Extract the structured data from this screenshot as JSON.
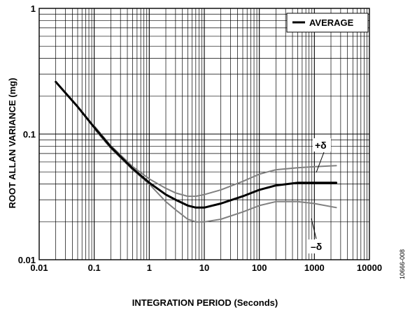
{
  "chart_data": {
    "type": "line",
    "title": "",
    "xlabel": "INTEGRATION PERIOD (Seconds)",
    "ylabel": "ROOT ALLAN VARIANCE (mg)",
    "x_scale": "log",
    "y_scale": "log",
    "xlim": [
      0.01,
      10000
    ],
    "ylim": [
      0.01,
      1
    ],
    "x_ticks": [
      "0.01",
      "0.1",
      "1",
      "10",
      "100",
      "1000",
      "10000"
    ],
    "y_ticks": [
      "0.01",
      "0.1",
      "1"
    ],
    "grid": true,
    "legend": {
      "position": "top-right",
      "entries": [
        "AVERAGE"
      ]
    },
    "series": [
      {
        "name": "AVERAGE",
        "color": "#000000",
        "x": [
          0.02,
          0.05,
          0.1,
          0.2,
          0.5,
          1,
          2,
          3,
          5,
          7,
          10,
          20,
          50,
          100,
          200,
          500,
          1000,
          2500
        ],
        "y": [
          0.26,
          0.165,
          0.113,
          0.079,
          0.053,
          0.041,
          0.033,
          0.03,
          0.027,
          0.026,
          0.026,
          0.028,
          0.032,
          0.036,
          0.039,
          0.041,
          0.041,
          0.041
        ]
      },
      {
        "name": "",
        "color": "#808080",
        "x": [
          0.1,
          0.2,
          0.5,
          1,
          2,
          3,
          5,
          7,
          10,
          20,
          50,
          100,
          200,
          500,
          1000,
          2500
        ],
        "y": [
          0.116,
          0.081,
          0.055,
          0.044,
          0.037,
          0.034,
          0.032,
          0.032,
          0.033,
          0.036,
          0.042,
          0.048,
          0.052,
          0.054,
          0.055,
          0.056
        ]
      },
      {
        "name": "",
        "color": "#808080",
        "x": [
          0.1,
          0.2,
          0.5,
          1,
          2,
          3,
          5,
          7,
          10,
          20,
          50,
          100,
          200,
          500,
          1000,
          2500
        ],
        "y": [
          0.11,
          0.077,
          0.052,
          0.04,
          0.029,
          0.025,
          0.021,
          0.02,
          0.02,
          0.021,
          0.024,
          0.027,
          0.029,
          0.029,
          0.028,
          0.026
        ]
      }
    ],
    "annotations": [
      {
        "text": "+δ",
        "x": 1000,
        "y": 0.055
      },
      {
        "text": "–δ",
        "x": 1000,
        "y": 0.026
      }
    ]
  },
  "figure_id": "10666-008"
}
